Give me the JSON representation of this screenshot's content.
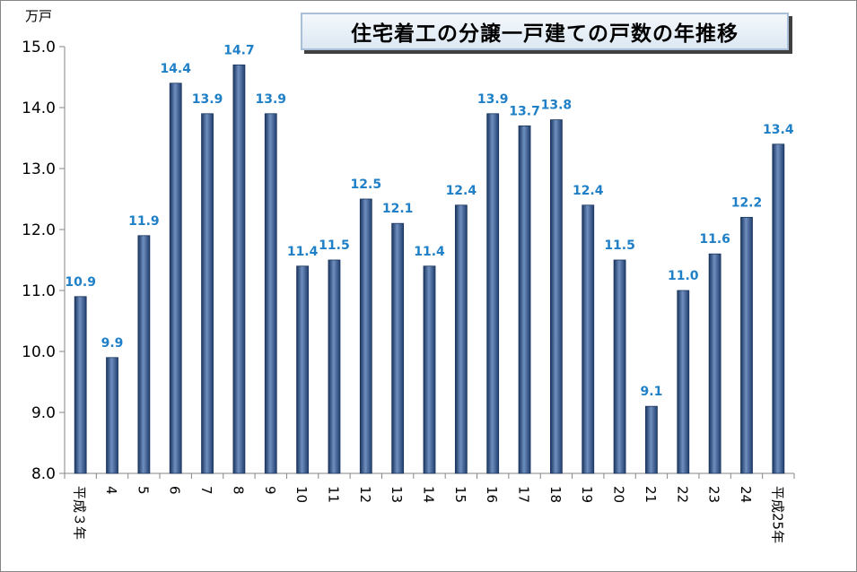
{
  "chart_data": {
    "type": "bar",
    "title": "住宅着工の分譲一戸建ての戸数の年推移",
    "unit_label": "万戸",
    "xlabel": "",
    "ylabel": "",
    "ylim": [
      8.0,
      15.0
    ],
    "yticks": [
      "8.0",
      "9.0",
      "10.0",
      "11.0",
      "12.0",
      "13.0",
      "14.0",
      "15.0"
    ],
    "categories": [
      "平成３年",
      "4",
      "5",
      "6",
      "7",
      "8",
      "9",
      "10",
      "11",
      "12",
      "13",
      "14",
      "15",
      "16",
      "17",
      "18",
      "19",
      "20",
      "21",
      "22",
      "23",
      "24",
      "平成25年"
    ],
    "values": [
      10.9,
      9.9,
      11.9,
      14.4,
      13.9,
      14.7,
      13.9,
      11.4,
      11.5,
      12.5,
      12.1,
      11.4,
      12.4,
      13.9,
      13.7,
      13.8,
      12.4,
      11.5,
      9.1,
      11.0,
      11.6,
      12.2,
      13.4
    ],
    "value_labels": [
      "10.9",
      "9.9",
      "11.9",
      "14.4",
      "13.9",
      "14.7",
      "13.9",
      "11.4",
      "11.5",
      "12.5",
      "12.1",
      "11.4",
      "12.4",
      "13.9",
      "13.7",
      "13.8",
      "12.4",
      "11.5",
      "9.1",
      "11.0",
      "11.6",
      "12.2",
      "13.4"
    ],
    "bar_color": "#2a4d82",
    "label_color": "#1f80c7",
    "grid": false,
    "legend": "none"
  }
}
